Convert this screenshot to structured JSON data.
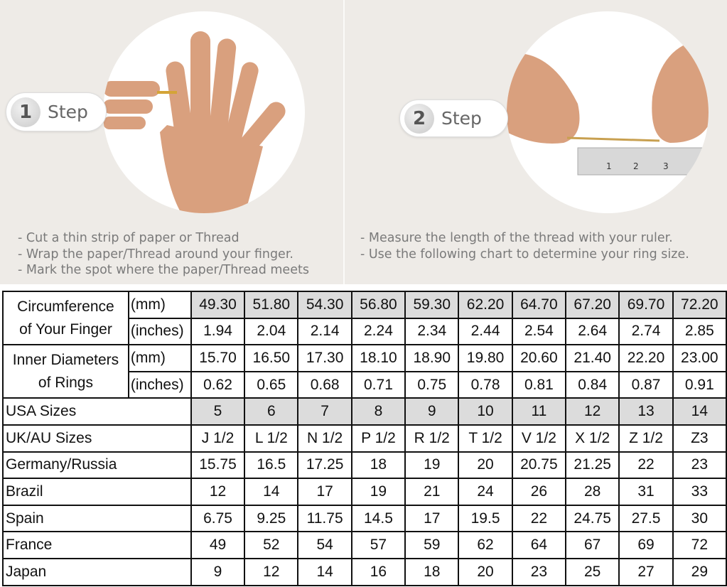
{
  "step1": {
    "number": "1",
    "label": "Step",
    "instructions": [
      "- Cut a thin strip of paper or Thread",
      "- Wrap the paper/Thread around your finger.",
      "- Mark the spot where the paper/Thread meets"
    ]
  },
  "step2": {
    "number": "2",
    "label": "Step",
    "instructions": [
      "- Measure the length of the thread with your ruler.",
      "- Use the following chart to determine your ring size."
    ],
    "ruler_marks": [
      "1",
      "2",
      "3"
    ]
  },
  "table": {
    "groups": [
      {
        "label_lines": [
          "Circumference",
          "of Your Finger"
        ],
        "rows": [
          {
            "unit": "(mm)",
            "values": [
              "49.30",
              "51.80",
              "54.30",
              "56.80",
              "59.30",
              "62.20",
              "64.70",
              "67.20",
              "69.70",
              "72.20"
            ],
            "shaded": true
          },
          {
            "unit": "(inches)",
            "values": [
              "1.94",
              "2.04",
              "2.14",
              "2.24",
              "2.34",
              "2.44",
              "2.54",
              "2.64",
              "2.74",
              "2.85"
            ]
          }
        ]
      },
      {
        "label_lines": [
          "Inner Diameters",
          "of Rings"
        ],
        "rows": [
          {
            "unit": "(mm)",
            "values": [
              "15.70",
              "16.50",
              "17.30",
              "18.10",
              "18.90",
              "19.80",
              "20.60",
              "21.40",
              "22.20",
              "23.00"
            ]
          },
          {
            "unit": "(inches)",
            "values": [
              "0.62",
              "0.65",
              "0.68",
              "0.71",
              "0.75",
              "0.78",
              "0.81",
              "0.84",
              "0.87",
              "0.91"
            ]
          }
        ]
      }
    ],
    "rows": [
      {
        "label": "USA Sizes",
        "values": [
          "5",
          "6",
          "7",
          "8",
          "9",
          "10",
          "11",
          "12",
          "13",
          "14"
        ],
        "shaded": true
      },
      {
        "label": "UK/AU Sizes",
        "values": [
          "J 1/2",
          "L 1/2",
          "N 1/2",
          "P 1/2",
          "R 1/2",
          "T 1/2",
          "V 1/2",
          "X 1/2",
          "Z 1/2",
          "Z3"
        ]
      },
      {
        "label": "Germany/Russia",
        "values": [
          "15.75",
          "16.5",
          "17.25",
          "18",
          "19",
          "20",
          "20.75",
          "21.25",
          "22",
          "23"
        ]
      },
      {
        "label": "Brazil",
        "values": [
          "12",
          "14",
          "17",
          "19",
          "21",
          "24",
          "26",
          "28",
          "31",
          "33"
        ]
      },
      {
        "label": "Spain",
        "values": [
          "6.75",
          "9.25",
          "11.75",
          "14.5",
          "17",
          "19.5",
          "22",
          "24.75",
          "27.5",
          "30"
        ]
      },
      {
        "label": "France",
        "values": [
          "49",
          "52",
          "54",
          "57",
          "59",
          "62",
          "64",
          "67",
          "69",
          "72"
        ]
      },
      {
        "label": "Japan",
        "values": [
          "9",
          "12",
          "14",
          "16",
          "18",
          "20",
          "23",
          "25",
          "27",
          "29"
        ]
      }
    ]
  },
  "colors": {
    "background": "#eeebe7",
    "shade": "#dcdcdc",
    "skin": "#d9a07e"
  }
}
